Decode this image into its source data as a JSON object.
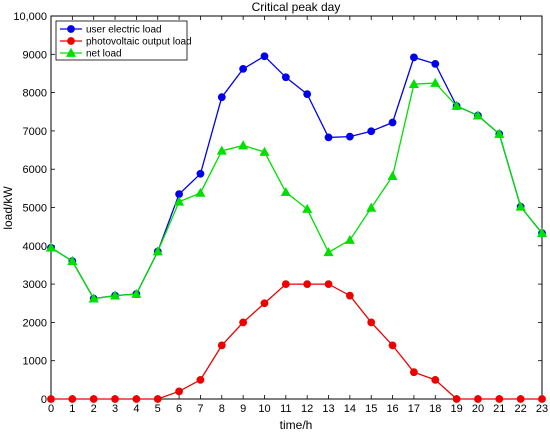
{
  "chart_data": {
    "type": "line",
    "title": "Critical peak day",
    "xlabel": "time/h",
    "ylabel": "load/kW",
    "xlim": [
      0,
      23
    ],
    "ylim": [
      0,
      10000
    ],
    "xticks": [
      "0",
      "1",
      "2",
      "3",
      "4",
      "5",
      "6",
      "7",
      "8",
      "9",
      "10",
      "11",
      "12",
      "13",
      "14",
      "15",
      "16",
      "17",
      "18",
      "19",
      "20",
      "21",
      "22",
      "23"
    ],
    "yticks": [
      "0",
      "1000",
      "2000",
      "3000",
      "4000",
      "5000",
      "6000",
      "7000",
      "8000",
      "9000",
      "10,000"
    ],
    "ytick_values": [
      0,
      1000,
      2000,
      3000,
      4000,
      5000,
      6000,
      7000,
      8000,
      9000,
      10000
    ],
    "grid": false,
    "legend_position": "top-left",
    "x": [
      0,
      1,
      2,
      3,
      4,
      5,
      6,
      7,
      8,
      9,
      10,
      11,
      12,
      13,
      14,
      15,
      16,
      17,
      18,
      19,
      20,
      21,
      22,
      23
    ],
    "series": [
      {
        "name": "user electric load",
        "color": "#0000ee",
        "marker": "circle",
        "values": [
          3950,
          3600,
          2620,
          2700,
          2740,
          3850,
          5350,
          5880,
          7880,
          8620,
          8950,
          8400,
          7960,
          6830,
          6850,
          6990,
          7220,
          8920,
          8750,
          7650,
          7400,
          6920,
          5020,
          4330
        ]
      },
      {
        "name": "photovoltaic output load",
        "color": "#ee0000",
        "marker": "circle",
        "values": [
          0,
          0,
          0,
          0,
          0,
          0,
          200,
          500,
          1400,
          2000,
          2500,
          3000,
          3000,
          3000,
          2700,
          2000,
          1400,
          700,
          500,
          0,
          0,
          0,
          0,
          0
        ]
      },
      {
        "name": "net load",
        "color": "#00e000",
        "marker": "triangle",
        "values": [
          3950,
          3600,
          2620,
          2700,
          2740,
          3850,
          5150,
          5380,
          6480,
          6620,
          6450,
          5400,
          4960,
          3830,
          4150,
          4990,
          5820,
          8220,
          8250,
          7650,
          7400,
          6920,
          5020,
          4330
        ]
      }
    ]
  }
}
